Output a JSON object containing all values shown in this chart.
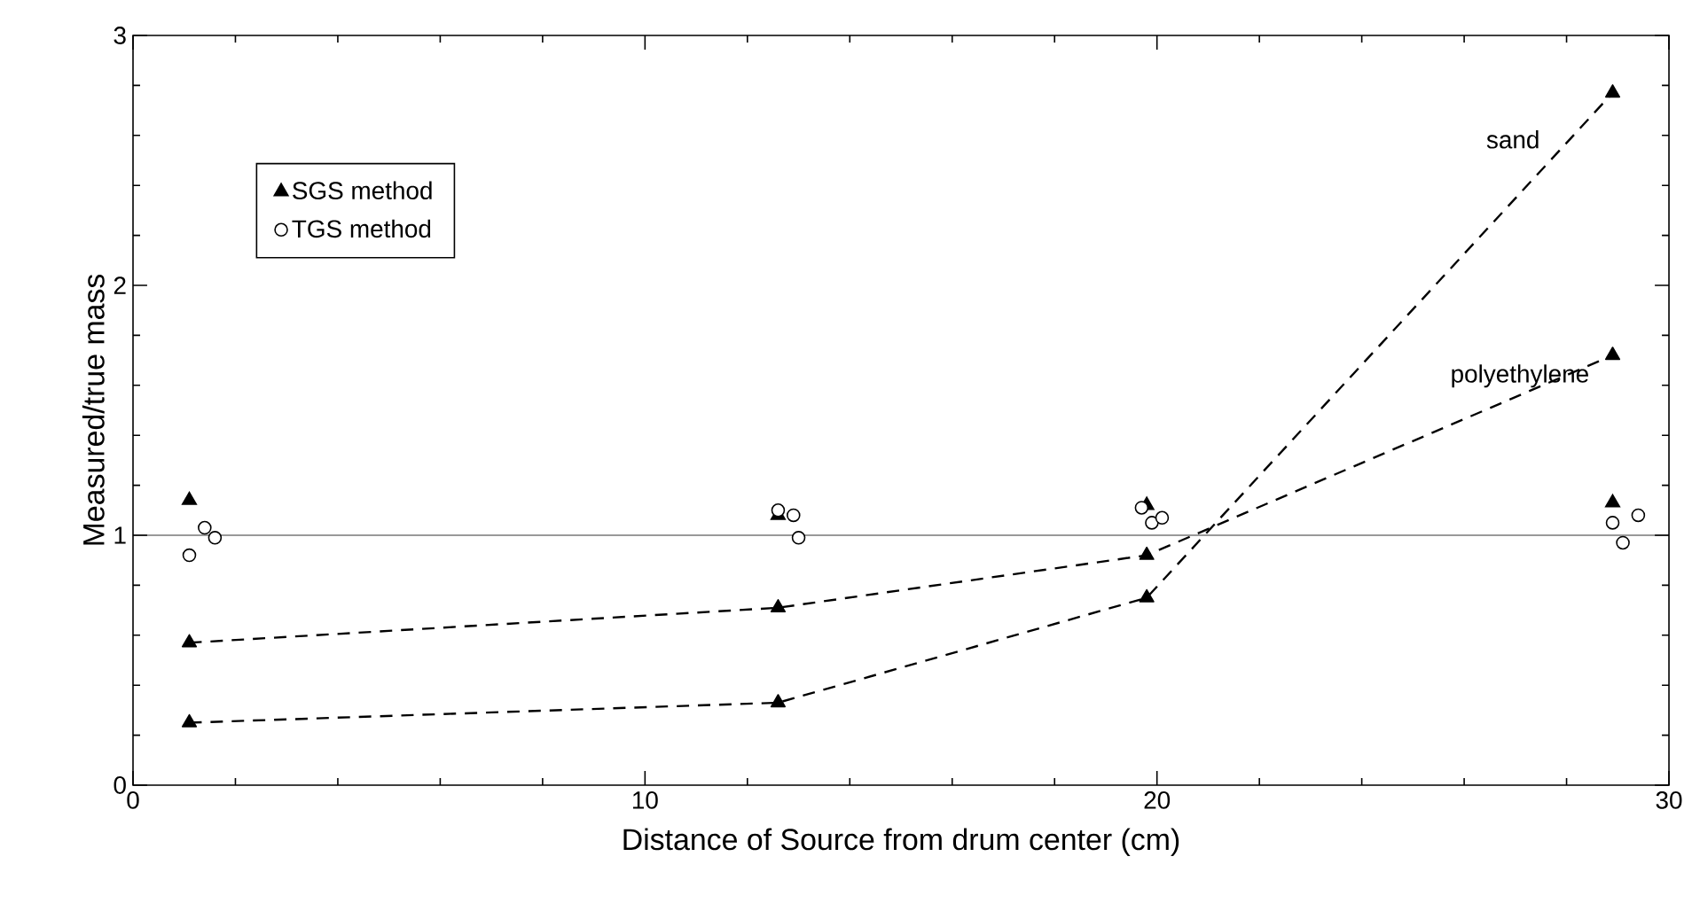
{
  "chart_data": {
    "type": "scatter",
    "xlabel": "Distance of Source from drum center (cm)",
    "ylabel": "Measured/true mass",
    "xlim": [
      0,
      30
    ],
    "ylim": [
      0,
      3
    ],
    "xticks": [
      0,
      10,
      20,
      30
    ],
    "yticks": [
      0,
      1,
      2,
      3
    ],
    "legend": "top left",
    "grid": false,
    "ref_lines": [
      {
        "axis": "y",
        "value": 1,
        "color": "#000000",
        "line_style": "solid"
      }
    ],
    "series": [
      {
        "name": "sand",
        "type": "line",
        "line_style": "dashed",
        "marker": "triangle",
        "color": "#000000",
        "x": [
          1.1,
          12.6,
          19.8,
          28.9
        ],
        "values": [
          0.25,
          0.33,
          0.75,
          2.77
        ]
      },
      {
        "name": "polyethylene",
        "type": "line",
        "line_style": "dashed",
        "marker": "triangle",
        "color": "#000000",
        "x": [
          1.1,
          12.6,
          19.8,
          28.9
        ],
        "values": [
          0.57,
          0.71,
          0.92,
          1.72
        ]
      },
      {
        "name": "SGS method",
        "marker": "triangle",
        "color": "#000000",
        "x": [
          1.1,
          12.6,
          19.8,
          28.9
        ],
        "values": [
          1.14,
          1.08,
          1.12,
          1.13
        ]
      },
      {
        "name": "TGS method",
        "marker": "circle",
        "color": "#000000",
        "x": [
          1.1,
          1.4,
          1.6,
          12.6,
          12.9,
          13.0,
          19.7,
          19.9,
          20.1,
          28.9,
          29.4,
          29.1
        ],
        "values": [
          0.92,
          1.03,
          0.99,
          1.1,
          1.08,
          0.99,
          1.11,
          1.05,
          1.07,
          1.05,
          1.08,
          0.97
        ]
      }
    ]
  }
}
